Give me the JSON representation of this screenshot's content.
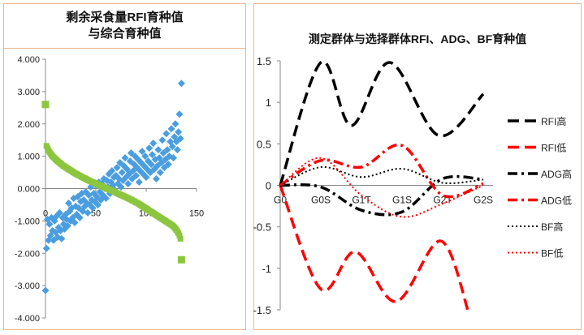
{
  "chart_data": [
    {
      "type": "scatter",
      "title_line1": "剩余采食量RFI育种值",
      "title_line2": "与综合育种值",
      "ylim": [
        -4,
        4
      ],
      "xlim": [
        0,
        150
      ],
      "ytick_labels": [
        "4.000",
        "3.000",
        "2.000",
        "1.000",
        "0.000",
        "-1.000",
        "-2.000",
        "-3.000",
        "-4.000"
      ],
      "xtick_labels": [
        "0",
        "50",
        "100",
        "150"
      ],
      "colors": {
        "blue": "#4a9ee0",
        "green": "#8cc63f"
      },
      "series": [
        {
          "marker": "diamond",
          "color": "#4a9ee0",
          "x": [
            0,
            1,
            2,
            3,
            4,
            5,
            6,
            7,
            8,
            9,
            10,
            11,
            12,
            13,
            14,
            15,
            16,
            17,
            18,
            19,
            20,
            21,
            22,
            23,
            24,
            25,
            26,
            27,
            28,
            29,
            30,
            31,
            32,
            33,
            34,
            35,
            36,
            37,
            38,
            39,
            40,
            41,
            42,
            43,
            44,
            45,
            46,
            47,
            48,
            49,
            50,
            51,
            52,
            53,
            54,
            55,
            56,
            57,
            58,
            59,
            60,
            61,
            62,
            63,
            64,
            65,
            66,
            67,
            68,
            69,
            70,
            71,
            72,
            73,
            74,
            75,
            76,
            77,
            78,
            79,
            80,
            81,
            82,
            83,
            84,
            85,
            86,
            87,
            88,
            89,
            90,
            91,
            92,
            93,
            94,
            95,
            96,
            97,
            98,
            99,
            100,
            101,
            102,
            103,
            104,
            105,
            106,
            107,
            108,
            109,
            110,
            111,
            112,
            113,
            114,
            115,
            116,
            117,
            118,
            119,
            120,
            121,
            122,
            123,
            124,
            125,
            126,
            127,
            128,
            129,
            130,
            131,
            132,
            133,
            134,
            135
          ],
          "y": [
            -3.15,
            -1.85,
            -0.95,
            -1.6,
            -1.1,
            -1.45,
            -0.9,
            -1.3,
            -1.6,
            -1.0,
            -1.35,
            -0.85,
            -1.5,
            -1.2,
            -0.75,
            -1.3,
            -1.55,
            -0.9,
            -1.1,
            -1.25,
            -0.8,
            -0.95,
            -1.15,
            -0.45,
            -0.7,
            -1.0,
            -0.6,
            -0.9,
            -0.3,
            -1.05,
            -0.55,
            -0.8,
            -0.25,
            -0.6,
            -0.9,
            -0.4,
            -0.15,
            -0.7,
            -0.35,
            -0.55,
            -0.1,
            -0.45,
            -0.75,
            -0.2,
            -0.5,
            0.05,
            -0.35,
            -0.6,
            -0.15,
            -0.4,
            0.1,
            -0.25,
            -0.5,
            0.2,
            -0.1,
            -0.35,
            0.15,
            -0.2,
            0.3,
            0.0,
            -0.3,
            0.25,
            0.05,
            0.45,
            -0.15,
            0.2,
            0.55,
            0.1,
            0.35,
            -0.05,
            0.4,
            0.65,
            0.15,
            0.3,
            0.8,
            0.05,
            0.5,
            0.25,
            0.7,
            0.95,
            0.35,
            0.6,
            0.15,
            0.45,
            0.85,
            1.1,
            0.3,
            0.55,
            0.75,
            1.0,
            0.4,
            0.65,
            0.9,
            0.2,
            0.55,
            0.8,
            1.15,
            0.45,
            0.7,
            1.0,
            0.35,
            0.6,
            0.85,
            1.25,
            0.5,
            0.75,
            1.05,
            1.4,
            0.6,
            0.9,
            0.3,
            0.7,
            1.2,
            0.95,
            0.5,
            0.8,
            1.5,
            1.1,
            0.65,
            0.9,
            1.7,
            1.2,
            0.75,
            1.0,
            1.45,
            1.85,
            1.3,
            0.95,
            1.6,
            2.0,
            1.45,
            1.2,
            1.75,
            2.3,
            1.55,
            3.25
          ]
        },
        {
          "marker": "square",
          "color": "#8cc63f",
          "x": [
            0,
            1,
            2,
            3,
            4,
            5,
            6,
            7,
            8,
            9,
            10,
            11,
            12,
            13,
            14,
            15,
            16,
            17,
            18,
            19,
            20,
            21,
            22,
            23,
            24,
            25,
            26,
            27,
            28,
            29,
            30,
            31,
            32,
            33,
            34,
            35,
            36,
            37,
            38,
            39,
            40,
            41,
            42,
            43,
            44,
            45,
            46,
            47,
            48,
            49,
            50,
            51,
            52,
            53,
            54,
            55,
            56,
            57,
            58,
            59,
            60,
            61,
            62,
            63,
            64,
            65,
            66,
            67,
            68,
            69,
            70,
            71,
            72,
            73,
            74,
            75,
            76,
            77,
            78,
            79,
            80,
            81,
            82,
            83,
            84,
            85,
            86,
            87,
            88,
            89,
            90,
            91,
            92,
            93,
            94,
            95,
            96,
            97,
            98,
            99,
            100,
            101,
            102,
            103,
            104,
            105,
            106,
            107,
            108,
            109,
            110,
            111,
            112,
            113,
            114,
            115,
            116,
            117,
            118,
            119,
            120,
            121,
            122,
            123,
            124,
            125,
            126,
            127,
            128,
            129,
            130,
            131,
            132,
            133,
            134,
            135
          ],
          "y": [
            2.6,
            1.32,
            1.25,
            1.18,
            1.13,
            1.08,
            1.04,
            1.0,
            0.97,
            0.94,
            0.91,
            0.88,
            0.85,
            0.82,
            0.8,
            0.77,
            0.75,
            0.72,
            0.7,
            0.68,
            0.66,
            0.64,
            0.62,
            0.6,
            0.58,
            0.56,
            0.54,
            0.52,
            0.5,
            0.48,
            0.46,
            0.45,
            0.43,
            0.41,
            0.4,
            0.38,
            0.36,
            0.35,
            0.33,
            0.32,
            0.3,
            0.28,
            0.27,
            0.25,
            0.24,
            0.22,
            0.21,
            0.2,
            0.18,
            0.17,
            0.15,
            0.14,
            0.12,
            0.11,
            0.1,
            0.08,
            0.07,
            0.05,
            0.04,
            0.03,
            0.01,
            0.0,
            -0.01,
            -0.03,
            -0.04,
            -0.05,
            -0.07,
            -0.08,
            -0.1,
            -0.11,
            -0.12,
            -0.14,
            -0.15,
            -0.17,
            -0.18,
            -0.2,
            -0.21,
            -0.22,
            -0.24,
            -0.25,
            -0.27,
            -0.28,
            -0.3,
            -0.31,
            -0.33,
            -0.34,
            -0.36,
            -0.38,
            -0.39,
            -0.41,
            -0.43,
            -0.44,
            -0.46,
            -0.48,
            -0.5,
            -0.52,
            -0.54,
            -0.56,
            -0.58,
            -0.6,
            -0.62,
            -0.64,
            -0.66,
            -0.68,
            -0.7,
            -0.72,
            -0.74,
            -0.76,
            -0.78,
            -0.8,
            -0.82,
            -0.84,
            -0.86,
            -0.88,
            -0.9,
            -0.92,
            -0.94,
            -0.96,
            -0.98,
            -1.0,
            -1.02,
            -1.04,
            -1.06,
            -1.08,
            -1.1,
            -1.12,
            -1.14,
            -1.17,
            -1.2,
            -1.24,
            -1.28,
            -1.33,
            -1.38,
            -1.45,
            -1.55,
            -2.2
          ]
        }
      ]
    },
    {
      "type": "line",
      "title": "测定群体与选择群体RFI、ADG、BF育种值",
      "categories": [
        "G0",
        "G0S",
        "G1T",
        "G1S",
        "G2T",
        "G2S"
      ],
      "ylim": [
        -1.5,
        1.5
      ],
      "ytick_labels": [
        "1.5",
        "1",
        "0.5",
        "0",
        "-0.5",
        "-1",
        "-1.5"
      ],
      "legend_position": "right",
      "series": [
        {
          "name": "RFI高",
          "color": "#000000",
          "dash": "long-dash",
          "values": [
            0,
            1.48,
            0.72,
            1.48,
            0.6,
            1.1
          ],
          "x": [
            0,
            1,
            1.75,
            2.7,
            3.9,
            5
          ]
        },
        {
          "name": "RFI低",
          "color": "#ff0000",
          "dash": "long-dash",
          "values": [
            0,
            -1.25,
            -0.8,
            -1.4,
            -0.67,
            -1.55
          ],
          "x": [
            0,
            1,
            1.85,
            2.85,
            3.95,
            4.65
          ]
        },
        {
          "name": "ADG高",
          "color": "#000000",
          "dash": "dash-dot",
          "values": [
            0,
            -0.02,
            -0.3,
            -0.32,
            0.08,
            0.07
          ],
          "x": [
            0,
            1,
            2,
            3,
            4,
            5
          ]
        },
        {
          "name": "ADG低",
          "color": "#ff0000",
          "dash": "dash-dot",
          "values": [
            0,
            0.3,
            0.22,
            0.48,
            -0.12,
            0.02
          ],
          "x": [
            0,
            1,
            2,
            3,
            4,
            5
          ]
        },
        {
          "name": "BF高",
          "color": "#000000",
          "dash": "dot",
          "values": [
            0,
            0.22,
            0.1,
            0.2,
            0.03,
            0.07
          ],
          "x": [
            0,
            1,
            2,
            3,
            4,
            5
          ]
        },
        {
          "name": "BF低",
          "color": "#ff0000",
          "dash": "dot",
          "values": [
            0,
            0.33,
            -0.12,
            -0.38,
            -0.22,
            0.0
          ],
          "x": [
            0,
            1,
            2,
            3,
            4,
            5
          ]
        }
      ]
    }
  ]
}
